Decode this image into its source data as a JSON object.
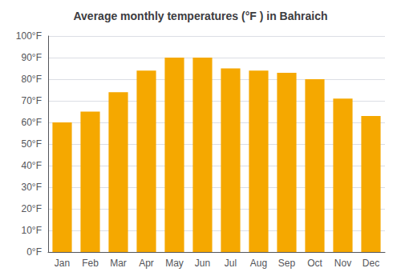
{
  "chart_data": {
    "type": "bar",
    "title": "Average monthly temperatures (°F ) in Bahraich",
    "categories": [
      "Jan",
      "Feb",
      "Mar",
      "Apr",
      "May",
      "Jun",
      "Jul",
      "Aug",
      "Sep",
      "Oct",
      "Nov",
      "Dec"
    ],
    "values": [
      60,
      65,
      74,
      84,
      90,
      90,
      85,
      84,
      83,
      80,
      71,
      63
    ],
    "color": "#F5A800",
    "ylim": [
      0,
      100
    ],
    "yticks": [
      {
        "value": 0,
        "label": "0°F"
      },
      {
        "value": 10,
        "label": "10°F"
      },
      {
        "value": 20,
        "label": "20°F"
      },
      {
        "value": 30,
        "label": "30°F"
      },
      {
        "value": 40,
        "label": "40°F"
      },
      {
        "value": 50,
        "label": "50°F"
      },
      {
        "value": 60,
        "label": "60°F"
      },
      {
        "value": 70,
        "label": "70°F"
      },
      {
        "value": 80,
        "label": "80°F"
      },
      {
        "value": 90,
        "label": "90°F"
      },
      {
        "value": 100,
        "label": "100°F"
      }
    ],
    "grid": true
  }
}
